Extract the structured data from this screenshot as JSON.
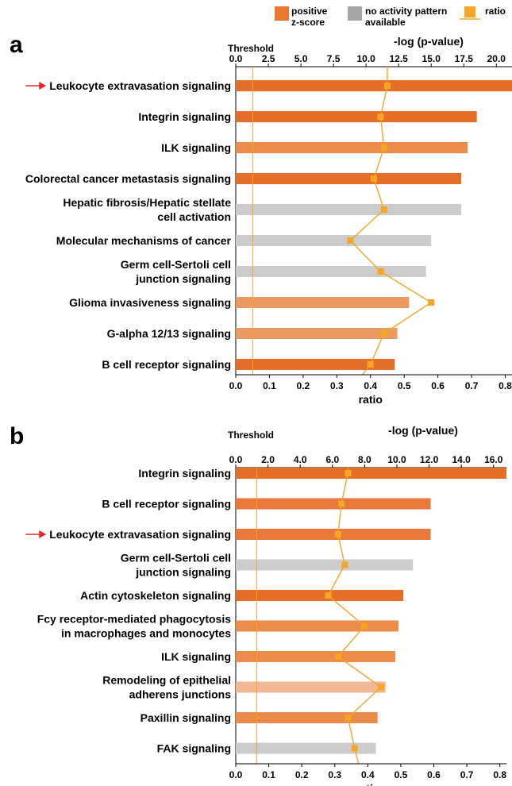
{
  "legend": {
    "positive_label": "positive\nz-score",
    "noactivity_label": "no activity pattern\navailable",
    "ratio_label": "ratio",
    "colors": {
      "positive": "#e8782f",
      "no_activity": "#a6a6a6",
      "ratio": "#f5a623"
    }
  },
  "chart_data": [
    {
      "panel_label": "a",
      "type": "bar",
      "x_top_label": "-log (p-value)",
      "x_top_ticks": [
        "0.0",
        "2.5",
        "5.0",
        "7.5",
        "10.0",
        "12.5",
        "15.0",
        "17.5",
        "20.0"
      ],
      "x_top_range": [
        0,
        21.2
      ],
      "x_bottom_label": "ratio",
      "x_bottom_ticks": [
        "0.0",
        "0.1",
        "0.2",
        "0.3",
        "0.4",
        "0.5",
        "0.6",
        "0.7",
        "0.8"
      ],
      "x_bottom_range": [
        0,
        0.82
      ],
      "threshold_label": "Threshold",
      "threshold": 1.3,
      "categories": [
        "Leukocyte extravasation signaling",
        "Integrin signaling",
        "ILK signaling",
        "Colorectal cancer metastasis signaling",
        "Hepatic fibrosis/Hepatic stellate\ncell activation",
        "Molecular mechanisms of cancer",
        "Germ cell-Sertoli cell\njunction signaling",
        "Glioma invasiveness signaling",
        "G-alpha 12/13 signaling",
        "B cell receptor signaling"
      ],
      "highlighted": [
        0
      ],
      "neg_log_p": [
        21.2,
        18.5,
        17.8,
        17.3,
        17.3,
        15.0,
        14.6,
        13.3,
        12.4,
        12.2
      ],
      "ratio": [
        0.45,
        0.43,
        0.44,
        0.41,
        0.44,
        0.34,
        0.43,
        0.58,
        0.44,
        0.4
      ],
      "bar_colors": [
        "#e56e28",
        "#e56e28",
        "#eb8c4b",
        "#e56e28",
        "#cccccc",
        "#cccccc",
        "#cccccc",
        "#eb9a60",
        "#eb9a60",
        "#e56e28"
      ]
    },
    {
      "panel_label": "b",
      "type": "bar",
      "x_top_label": "-log (p-value)",
      "x_top_ticks": [
        "0.0",
        "2.0",
        "4.0",
        "6.0",
        "8.0",
        "10.0",
        "12.0",
        "14.0",
        "16.0"
      ],
      "x_top_range": [
        0,
        16.8
      ],
      "x_bottom_label": "ratio",
      "x_bottom_ticks": [
        "0.0",
        "0.1",
        "0.2",
        "0.3",
        "0.4",
        "0.5",
        "0.6",
        "0.7",
        "0.8"
      ],
      "x_bottom_range": [
        0,
        0.82
      ],
      "threshold_label": "Threshold",
      "threshold": 1.3,
      "categories": [
        "Integrin signaling",
        "B cell receptor signaling",
        "Leukocyte extravasation signaling",
        "Germ cell-Sertoli cell\njunction signaling",
        "Actin cytoskeleton signaling",
        "Fcy receptor-mediated phagocytosis\nin macrophages and monocytes",
        "ILK signaling",
        "Remodeling of epithelial\nadherens junctions",
        "Paxillin signaling",
        "FAK signaling"
      ],
      "highlighted": [
        2
      ],
      "neg_log_p": [
        16.8,
        12.1,
        12.1,
        11.0,
        10.4,
        10.1,
        9.9,
        9.3,
        8.8,
        8.7
      ],
      "ratio": [
        0.34,
        0.32,
        0.31,
        0.33,
        0.28,
        0.39,
        0.31,
        0.44,
        0.34,
        0.36
      ],
      "bar_colors": [
        "#e56e28",
        "#e8793a",
        "#e8793a",
        "#cccccc",
        "#e56e28",
        "#eb8c4b",
        "#eb8c4b",
        "#f2b795",
        "#eb8c4b",
        "#cccccc"
      ]
    }
  ]
}
